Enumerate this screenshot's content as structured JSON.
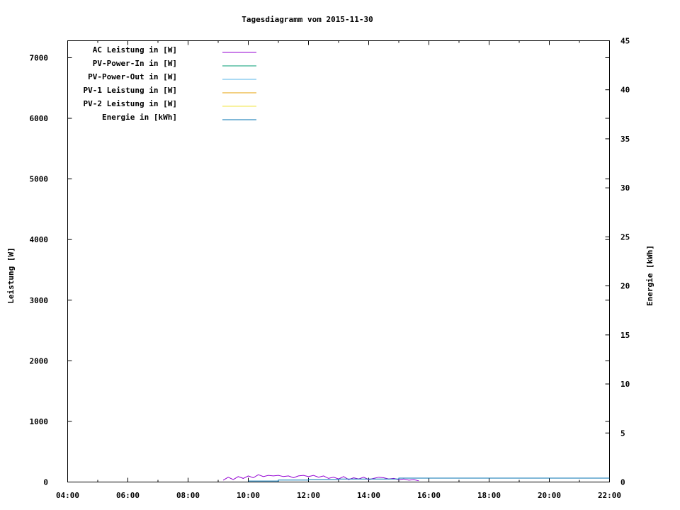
{
  "chart_data": {
    "type": "line",
    "title": "Tagesdiagramm vom 2015-11-30",
    "xlabel": "",
    "ylabel": "Leistung [W]",
    "y2label": "Energie [kWh]",
    "xlim": [
      "04:00",
      "22:00"
    ],
    "ylim": [
      0,
      7280
    ],
    "y2lim": [
      0,
      45
    ],
    "x_ticks": [
      "04:00",
      "06:00",
      "08:00",
      "10:00",
      "12:00",
      "14:00",
      "16:00",
      "18:00",
      "20:00",
      "22:00"
    ],
    "y_ticks": [
      "0",
      "1000",
      "2000",
      "3000",
      "4000",
      "5000",
      "6000",
      "7000"
    ],
    "y2_ticks": [
      "0",
      "5",
      "10",
      "15",
      "20",
      "25",
      "30",
      "35",
      "40",
      "45"
    ],
    "grid": false,
    "legend_position": "top-left",
    "series": [
      {
        "name": "AC Leistung in [W]",
        "color": "#9400d3",
        "axis": "y",
        "x": [
          "09:10",
          "09:20",
          "09:30",
          "09:40",
          "09:50",
          "10:00",
          "10:10",
          "10:20",
          "10:30",
          "10:40",
          "10:50",
          "11:00",
          "11:10",
          "11:20",
          "11:30",
          "11:40",
          "11:50",
          "12:00",
          "12:10",
          "12:20",
          "12:30",
          "12:40",
          "12:50",
          "13:00",
          "13:10",
          "13:20",
          "13:30",
          "13:40",
          "13:50",
          "14:00",
          "14:10",
          "14:20",
          "14:30",
          "14:40",
          "14:50",
          "15:00",
          "15:10",
          "15:20",
          "15:30",
          "15:40"
        ],
        "y": [
          30,
          80,
          40,
          90,
          60,
          100,
          70,
          120,
          90,
          110,
          100,
          110,
          90,
          100,
          70,
          100,
          110,
          90,
          110,
          80,
          100,
          60,
          80,
          50,
          90,
          40,
          70,
          50,
          80,
          40,
          60,
          80,
          70,
          50,
          60,
          40,
          50,
          30,
          40,
          20
        ]
      },
      {
        "name": "PV-Power-In in [W]",
        "color": "#009e73",
        "axis": "y",
        "x": [],
        "y": []
      },
      {
        "name": "PV-Power-Out in [W]",
        "color": "#56b4e9",
        "axis": "y",
        "x": [],
        "y": []
      },
      {
        "name": "PV-1 Leistung in [W]",
        "color": "#e69f00",
        "axis": "y",
        "x": [],
        "y": []
      },
      {
        "name": "PV-2 Leistung in [W]",
        "color": "#f0e442",
        "axis": "y",
        "x": [],
        "y": []
      },
      {
        "name": "Energie in [kWh]",
        "color": "#0072b2",
        "axis": "y2",
        "x": [
          "10:00",
          "11:00",
          "11:00",
          "12:00",
          "12:00",
          "13:00",
          "13:00",
          "15:00",
          "15:00",
          "22:00"
        ],
        "y": [
          0.1,
          0.1,
          0.2,
          0.2,
          0.25,
          0.25,
          0.3,
          0.3,
          0.4,
          0.4
        ]
      }
    ]
  }
}
